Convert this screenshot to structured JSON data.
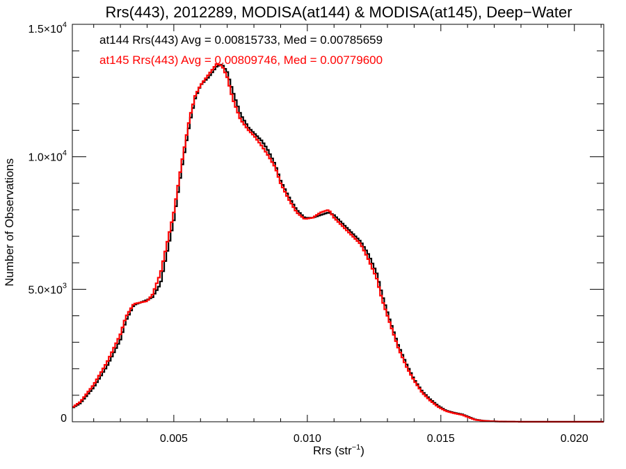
{
  "chart_data": {
    "type": "line",
    "step": true,
    "title": "Rrs(443), 2012289, MODISA(at144) & MODISA(at145), Deep−Water",
    "xlabel_main": "Rrs (str",
    "xlabel_sup": "−1",
    "xlabel_end": ")",
    "ylabel": "Number of Observations",
    "xlim": [
      0.0012,
      0.0211
    ],
    "ylim": [
      0,
      15000
    ],
    "x_ticks": [
      {
        "value": 0.005,
        "label": "0.005"
      },
      {
        "value": 0.01,
        "label": "0.010"
      },
      {
        "value": 0.015,
        "label": "0.015"
      },
      {
        "value": 0.02,
        "label": "0.020"
      }
    ],
    "y_ticks": [
      {
        "value": 0,
        "mant": "0",
        "exp": ""
      },
      {
        "value": 5000,
        "mant": "5.0×10",
        "exp": "3"
      },
      {
        "value": 10000,
        "mant": "1.0×10",
        "exp": "4"
      },
      {
        "value": 15000,
        "mant": "1.5×10",
        "exp": "4"
      }
    ],
    "grid": false,
    "legend_position": "top-left",
    "series": [
      {
        "name": "at144",
        "label": "at144 Rrs(443) Avg = 0.00815733, Med = 0.00785659",
        "color": "#000000",
        "x": [
          0.0012,
          0.0015,
          0.002,
          0.0025,
          0.003,
          0.0032,
          0.0035,
          0.004,
          0.0042,
          0.0045,
          0.005,
          0.0053,
          0.0056,
          0.0058,
          0.006,
          0.0063,
          0.0066,
          0.0068,
          0.007,
          0.0072,
          0.0075,
          0.0078,
          0.008,
          0.0083,
          0.0085,
          0.0088,
          0.009,
          0.0093,
          0.0096,
          0.0099,
          0.0102,
          0.0105,
          0.0108,
          0.011,
          0.0113,
          0.0116,
          0.0119,
          0.012,
          0.0123,
          0.0126,
          0.0128,
          0.0131,
          0.0134,
          0.0137,
          0.014,
          0.0143,
          0.0146,
          0.0149,
          0.0152,
          0.0155,
          0.0158,
          0.016,
          0.0163,
          0.0166,
          0.0169,
          0.0172,
          0.0175,
          0.018,
          0.019,
          0.02,
          0.0211
        ],
        "y": [
          520,
          700,
          1300,
          2100,
          3100,
          3800,
          4400,
          4600,
          4700,
          5200,
          7600,
          9600,
          11300,
          12200,
          12700,
          13000,
          13400,
          13500,
          13200,
          12500,
          11600,
          11100,
          10900,
          10600,
          10300,
          9700,
          9100,
          8500,
          8000,
          7700,
          7700,
          7800,
          7900,
          7800,
          7500,
          7200,
          6900,
          6800,
          6300,
          5600,
          4800,
          3800,
          2900,
          2200,
          1600,
          1150,
          850,
          600,
          420,
          340,
          280,
          200,
          80,
          40,
          20,
          10,
          5,
          0,
          0,
          0,
          0
        ]
      },
      {
        "name": "at145",
        "label": "at145 Rrs(443) Avg = 0.00809746, Med = 0.00779600",
        "color": "#ff0000",
        "x": [
          0.0012,
          0.0015,
          0.002,
          0.0025,
          0.003,
          0.0032,
          0.0035,
          0.004,
          0.0042,
          0.0045,
          0.005,
          0.0053,
          0.0056,
          0.0058,
          0.006,
          0.0063,
          0.0066,
          0.0068,
          0.007,
          0.0072,
          0.0075,
          0.0078,
          0.008,
          0.0083,
          0.0085,
          0.0088,
          0.009,
          0.0093,
          0.0096,
          0.0099,
          0.0102,
          0.0105,
          0.0108,
          0.011,
          0.0113,
          0.0116,
          0.0119,
          0.012,
          0.0123,
          0.0126,
          0.0128,
          0.0131,
          0.0134,
          0.0137,
          0.014,
          0.0143,
          0.0146,
          0.0149,
          0.0152,
          0.0155,
          0.0158,
          0.016,
          0.0163,
          0.0166,
          0.0169,
          0.0172,
          0.0175,
          0.018,
          0.019,
          0.02,
          0.0211
        ],
        "y": [
          540,
          750,
          1400,
          2250,
          3300,
          3950,
          4450,
          4550,
          4800,
          5600,
          7900,
          9800,
          11500,
          12300,
          12700,
          13100,
          13500,
          13450,
          13000,
          12200,
          11400,
          11000,
          10800,
          10400,
          10100,
          9600,
          9000,
          8400,
          7900,
          7650,
          7700,
          7900,
          8000,
          7700,
          7400,
          7100,
          6800,
          6700,
          6100,
          5400,
          4600,
          3700,
          2800,
          2100,
          1550,
          1100,
          800,
          560,
          400,
          320,
          260,
          180,
          70,
          35,
          18,
          8,
          4,
          0,
          0,
          0,
          0
        ]
      }
    ]
  }
}
